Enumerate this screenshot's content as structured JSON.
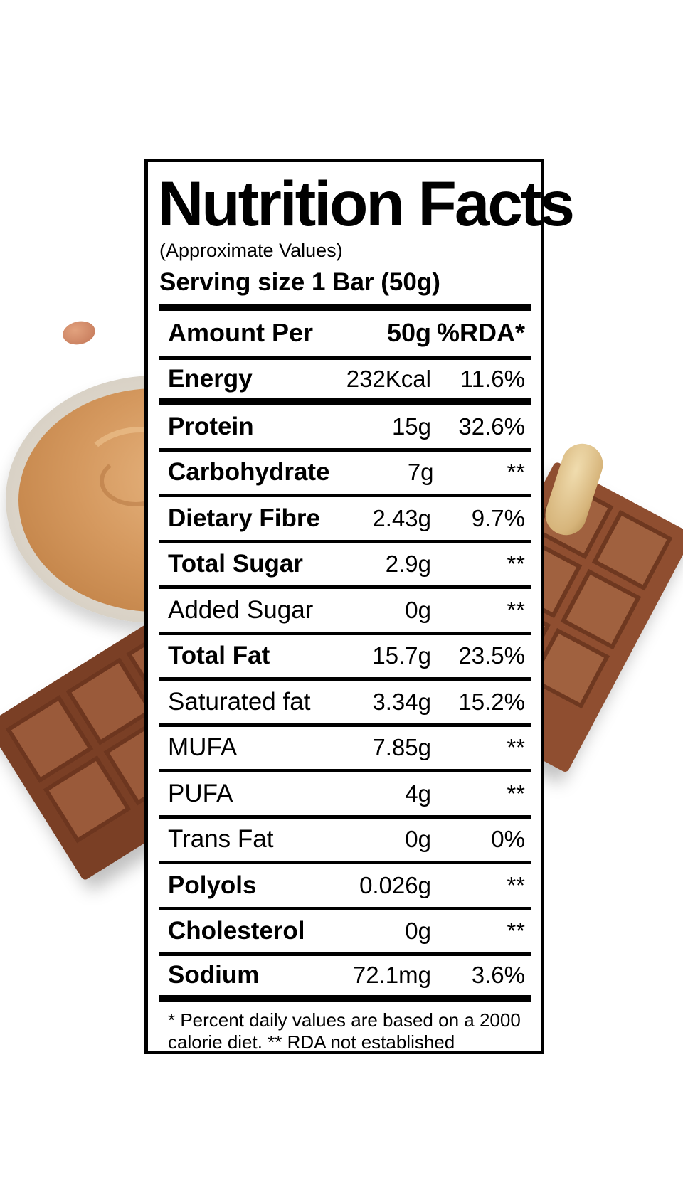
{
  "label": {
    "title": "Nutrition Facts",
    "subtitle": "(Approximate Values)",
    "serving_size": "Serving size 1 Bar (50g)",
    "header": {
      "name": "Amount Per",
      "amount": "50g",
      "rda": "%RDA*"
    },
    "rows": [
      {
        "name": "Energy",
        "amount": "232Kcal",
        "rda": "11.6%",
        "bold": true
      },
      {
        "name": "Protein",
        "amount": "15g",
        "rda": "32.6%",
        "bold": true
      },
      {
        "name": "Carbohydrate",
        "amount": "7g",
        "rda": "**",
        "bold": true
      },
      {
        "name": "Dietary Fibre",
        "amount": "2.43g",
        "rda": "9.7%",
        "bold": true
      },
      {
        "name": "Total Sugar",
        "amount": "2.9g",
        "rda": "**",
        "bold": true
      },
      {
        "name": "Added Sugar",
        "amount": "0g",
        "rda": "**",
        "bold": false
      },
      {
        "name": "Total Fat",
        "amount": "15.7g",
        "rda": "23.5%",
        "bold": true
      },
      {
        "name": "Saturated fat",
        "amount": "3.34g",
        "rda": "15.2%",
        "bold": false
      },
      {
        "name": "MUFA",
        "amount": "7.85g",
        "rda": "**",
        "bold": false
      },
      {
        "name": "PUFA",
        "amount": "4g",
        "rda": "**",
        "bold": false
      },
      {
        "name": "Trans Fat",
        "amount": "0g",
        "rda": "0%",
        "bold": false
      },
      {
        "name": "Polyols",
        "amount": "0.026g",
        "rda": "**",
        "bold": true
      },
      {
        "name": "Cholesterol",
        "amount": "0g",
        "rda": "**",
        "bold": true
      },
      {
        "name": "Sodium",
        "amount": "72.1mg",
        "rda": "3.6%",
        "bold": true
      }
    ],
    "footnote": "* Percent daily values are based on a 2000 calorie diet. ** RDA not established"
  },
  "decor": {
    "background_color": "#ffffff",
    "label_border_color": "#000000",
    "images": [
      "peanut-butter-bowl",
      "milk-chocolate-bar-left",
      "milk-chocolate-bar-right",
      "peanut-left",
      "peanut-right"
    ]
  }
}
